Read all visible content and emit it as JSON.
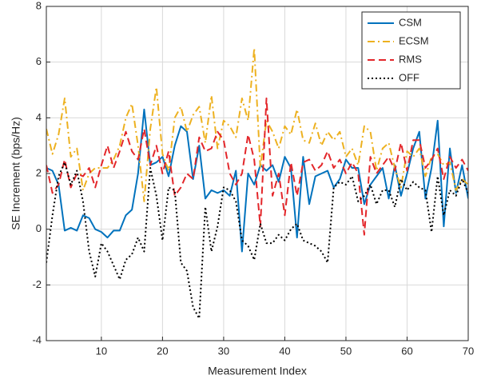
{
  "chart_data": {
    "type": "line",
    "xlabel": "Measurement Index",
    "ylabel": "SE Increment (bps/Hz)",
    "x": [
      1,
      2,
      3,
      4,
      5,
      6,
      7,
      8,
      9,
      10,
      11,
      12,
      13,
      14,
      15,
      16,
      17,
      18,
      19,
      20,
      21,
      22,
      23,
      24,
      25,
      26,
      27,
      28,
      29,
      30,
      31,
      32,
      33,
      34,
      35,
      36,
      37,
      38,
      39,
      40,
      41,
      42,
      43,
      44,
      45,
      46,
      47,
      48,
      49,
      50,
      51,
      52,
      53,
      54,
      55,
      56,
      57,
      58,
      59,
      60,
      61,
      62,
      63,
      64,
      65,
      66,
      67,
      68,
      69,
      70
    ],
    "series": [
      {
        "name": "CSM",
        "color": "#0072bd",
        "linestyle": "solid",
        "values": [
          2.2,
          2.1,
          1.6,
          -0.05,
          0.05,
          -0.05,
          0.5,
          0.4,
          0,
          -0.1,
          -0.3,
          -0.05,
          -0.05,
          0.5,
          0.7,
          2.0,
          4.3,
          2.3,
          2.4,
          2.6,
          1.9,
          3.0,
          3.7,
          3.5,
          1.8,
          3.0,
          1.1,
          1.4,
          1.3,
          1.4,
          1.2,
          2.1,
          -0.8,
          2.0,
          1.6,
          2.3,
          2.1,
          2.3,
          1.7,
          2.6,
          2.2,
          -0.3,
          2.6,
          0.9,
          1.9,
          2.0,
          2.1,
          1.5,
          1.8,
          2.5,
          2.2,
          2.2,
          0.9,
          1.6,
          1.9,
          2.2,
          1.1,
          2.3,
          1.2,
          2.0,
          2.9,
          3.5,
          1.1,
          2.2,
          3.9,
          0.1,
          2.9,
          1.3,
          2.3,
          1.1
        ]
      },
      {
        "name": "ECSM",
        "color": "#edb120",
        "linestyle": "dashdot",
        "values": [
          3.6,
          2.7,
          3.4,
          4.7,
          2.6,
          2.9,
          1.4,
          2.0,
          2.2,
          2.2,
          2.2,
          2.5,
          3.0,
          4.0,
          4.5,
          3.0,
          1.0,
          3.6,
          5.1,
          2.7,
          2.1,
          4.0,
          4.4,
          3.5,
          4.1,
          4.4,
          3.1,
          4.8,
          2.9,
          3.9,
          3.7,
          3.3,
          4.7,
          3.9,
          6.5,
          2.2,
          3.9,
          3.5,
          2.9,
          3.7,
          3.4,
          4.3,
          3.2,
          3.1,
          3.8,
          3.0,
          3.5,
          3.2,
          3.5,
          2.6,
          2.9,
          2.3,
          3.7,
          3.5,
          2.1,
          2.9,
          3.1,
          2.2,
          1.5,
          2.8,
          2.6,
          2.9,
          1.9,
          2.6,
          2.7,
          2.3,
          2.4,
          1.4,
          1.8,
          1.6
        ]
      },
      {
        "name": "RMS",
        "color": "#e3262a",
        "linestyle": "dashed",
        "values": [
          2.3,
          1.3,
          1.6,
          2.5,
          1.5,
          2.0,
          1.9,
          2.2,
          1.5,
          2.3,
          3.0,
          2.2,
          2.8,
          3.5,
          2.8,
          2.5,
          3.6,
          2.3,
          3.0,
          2.0,
          2.8,
          1.2,
          1.5,
          2.0,
          1.8,
          3.3,
          2.8,
          2.9,
          3.5,
          3.2,
          2.0,
          1.6,
          2.0,
          3.4,
          2.5,
          0.1,
          4.7,
          1.2,
          2.0,
          0.5,
          2.4,
          1.2,
          2.4,
          2.5,
          2.1,
          2.3,
          2.8,
          2.2,
          2.5,
          2.0,
          2.4,
          2.0,
          -0.2,
          2.6,
          2.0,
          2.3,
          2.6,
          2.1,
          3.1,
          2.1,
          3.2,
          3.2,
          2.2,
          2.5,
          2.9,
          1.8,
          2.6,
          2.2,
          2.5,
          2.1
        ]
      },
      {
        "name": "OFF",
        "color": "#000000",
        "linestyle": "dotted",
        "values": [
          -1.2,
          0.5,
          1.9,
          2.4,
          1.6,
          2.1,
          1.0,
          -0.8,
          -1.7,
          -0.5,
          -0.8,
          -1.3,
          -1.8,
          -1.1,
          -0.9,
          -0.3,
          -0.8,
          2.2,
          1.2,
          -0.4,
          1.5,
          1.4,
          -1.2,
          -1.5,
          -2.8,
          -3.2,
          0.8,
          -0.8,
          0.1,
          1.5,
          1.4,
          1.0,
          -0.4,
          -0.6,
          -1.1,
          0.2,
          -0.5,
          -0.5,
          -0.2,
          -0.4,
          0.0,
          0.2,
          -0.4,
          -0.5,
          -0.6,
          -0.8,
          -1.2,
          1.5,
          1.7,
          1.6,
          1.9,
          1.0,
          1.2,
          1.6,
          0.9,
          1.4,
          1.4,
          0.8,
          1.8,
          1.4,
          1.7,
          1.5,
          1.4,
          -0.1,
          1.9,
          0.5,
          1.4,
          1.2,
          1.8,
          1.3
        ]
      }
    ],
    "xlim": [
      1,
      70
    ],
    "xticks": [
      10,
      20,
      30,
      40,
      50,
      60,
      70
    ],
    "ylim": [
      -4,
      8
    ],
    "yticks": [
      -4,
      -2,
      0,
      2,
      4,
      6,
      8
    ],
    "grid": true,
    "legend": "northeast"
  }
}
